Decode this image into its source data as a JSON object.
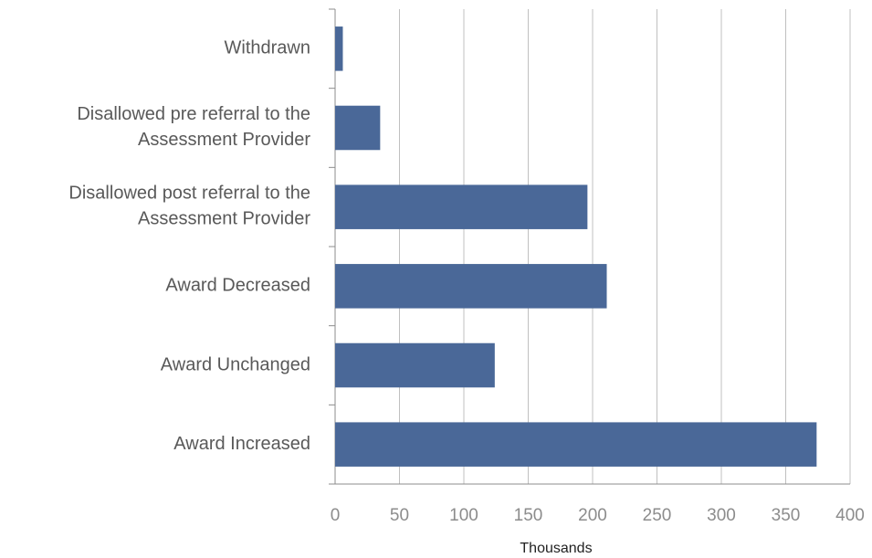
{
  "chart_data": {
    "type": "bar",
    "orientation": "horizontal",
    "categories": [
      "Withdrawn",
      "Disallowed pre referral to the\nAssessment Provider",
      "Disallowed post referral to the\nAssessment Provider",
      "Award Decreased",
      "Award Unchanged",
      "Award Increased"
    ],
    "values": [
      6,
      35,
      196,
      211,
      124,
      374
    ],
    "color": "#4a6898",
    "x_label": "Thousands",
    "xlim": [
      0,
      400
    ],
    "xticks": [
      0,
      50,
      100,
      150,
      200,
      250,
      300,
      350,
      400
    ],
    "grid": true
  }
}
